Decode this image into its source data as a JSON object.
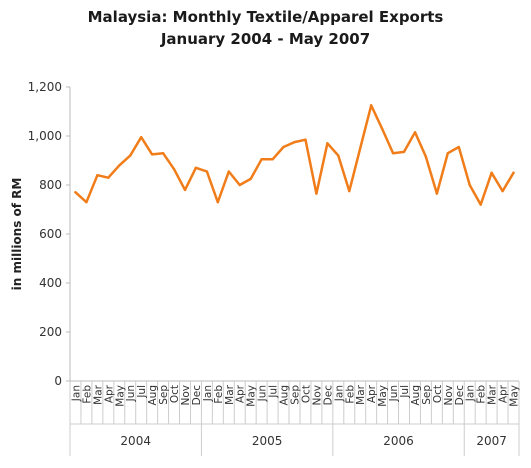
{
  "chart_data": {
    "type": "line",
    "title": "Malaysia:  Monthly Textile/Apparel Exports",
    "subtitle": "January 2004 - May 2007",
    "ylabel": "in millions of RM",
    "ylim": [
      0,
      1200
    ],
    "yticks": [
      "0",
      "200",
      "400",
      "600",
      "800",
      "1,000",
      "1,200"
    ],
    "grid": false,
    "line_color": "#f07d1a",
    "axis_color": "#bbbbbb",
    "years": [
      {
        "label": "2004",
        "months": 12
      },
      {
        "label": "2005",
        "months": 12
      },
      {
        "label": "2006",
        "months": 12
      },
      {
        "label": "2007",
        "months": 5
      }
    ],
    "categories": [
      "Jan",
      "Feb",
      "Mar",
      "Apr",
      "May",
      "Jun",
      "Jul",
      "Aug",
      "Sep",
      "Oct",
      "Nov",
      "Dec",
      "Jan",
      "Feb",
      "Mar",
      "Apr",
      "May",
      "Jun",
      "Jul",
      "Aug",
      "Sep",
      "Oct",
      "Nov",
      "Dec",
      "Jan",
      "Feb",
      "Mar",
      "Apr",
      "May",
      "Jun",
      "Jul",
      "Aug",
      "Sep",
      "Oct",
      "Nov",
      "Dec",
      "Jan",
      "Feb",
      "Mar",
      "Apr",
      "May"
    ],
    "values": [
      770,
      730,
      840,
      830,
      880,
      920,
      995,
      925,
      930,
      865,
      780,
      870,
      855,
      730,
      855,
      800,
      825,
      905,
      905,
      955,
      975,
      985,
      765,
      970,
      920,
      775,
      950,
      1125,
      1030,
      930,
      935,
      1015,
      915,
      765,
      930,
      955,
      800,
      720,
      850,
      775,
      850
    ]
  }
}
